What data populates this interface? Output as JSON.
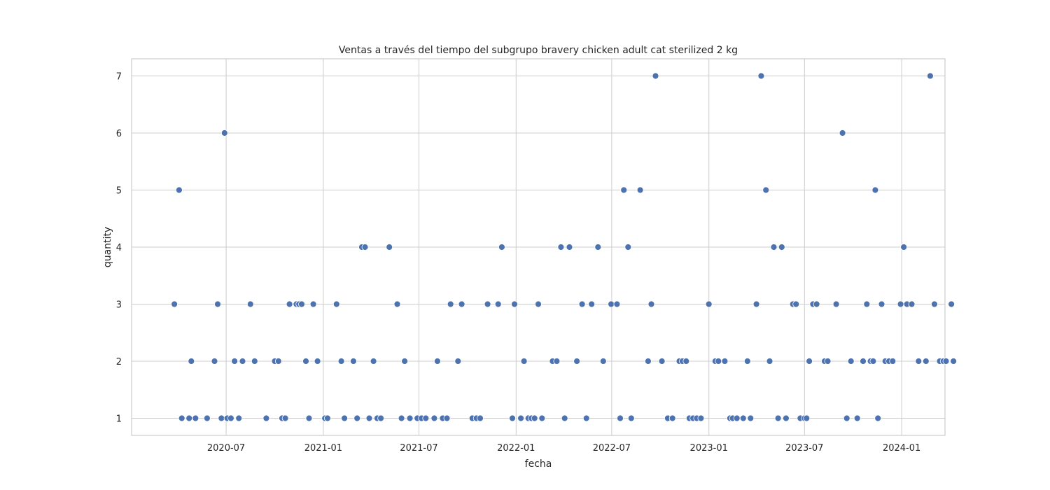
{
  "chart_data": {
    "type": "scatter",
    "title": "Ventas a través del tiempo del subgrupo bravery chicken adult cat sterilized 2 kg",
    "xlabel": "fecha",
    "ylabel": "quantity",
    "xlim": [
      "2020-01-04",
      "2024-03-23"
    ],
    "ylim": [
      0.7,
      7.3
    ],
    "x_ticks": [
      "2020-07",
      "2021-01",
      "2021-07",
      "2022-01",
      "2022-07",
      "2023-01",
      "2023-07",
      "2024-01"
    ],
    "y_ticks": [
      1,
      2,
      3,
      4,
      5,
      6,
      7
    ],
    "grid": true,
    "color": "#4c72b0",
    "points": [
      [
        "2020-03-25",
        3
      ],
      [
        "2020-04-03",
        5
      ],
      [
        "2020-04-08",
        1
      ],
      [
        "2020-04-22",
        1
      ],
      [
        "2020-04-26",
        2
      ],
      [
        "2020-05-04",
        1
      ],
      [
        "2020-05-26",
        1
      ],
      [
        "2020-06-09",
        2
      ],
      [
        "2020-06-15",
        3
      ],
      [
        "2020-06-22",
        1
      ],
      [
        "2020-06-28",
        6
      ],
      [
        "2020-07-03",
        1
      ],
      [
        "2020-07-10",
        1
      ],
      [
        "2020-07-17",
        2
      ],
      [
        "2020-07-25",
        1
      ],
      [
        "2020-08-01",
        2
      ],
      [
        "2020-08-16",
        3
      ],
      [
        "2020-08-24",
        2
      ],
      [
        "2020-09-15",
        1
      ],
      [
        "2020-10-01",
        2
      ],
      [
        "2020-10-08",
        2
      ],
      [
        "2020-10-15",
        1
      ],
      [
        "2020-10-21",
        1
      ],
      [
        "2020-10-29",
        3
      ],
      [
        "2020-11-11",
        3
      ],
      [
        "2020-11-16",
        3
      ],
      [
        "2020-11-21",
        3
      ],
      [
        "2020-11-29",
        2
      ],
      [
        "2020-12-05",
        1
      ],
      [
        "2020-12-13",
        3
      ],
      [
        "2020-12-21",
        2
      ],
      [
        "2021-01-04",
        1
      ],
      [
        "2021-01-09",
        1
      ],
      [
        "2021-01-26",
        3
      ],
      [
        "2021-02-04",
        2
      ],
      [
        "2021-02-10",
        1
      ],
      [
        "2021-02-27",
        2
      ],
      [
        "2021-03-06",
        1
      ],
      [
        "2021-03-15",
        4
      ],
      [
        "2021-03-21",
        4
      ],
      [
        "2021-03-29",
        1
      ],
      [
        "2021-04-06",
        2
      ],
      [
        "2021-04-13",
        1
      ],
      [
        "2021-04-20",
        1
      ],
      [
        "2021-05-06",
        4
      ],
      [
        "2021-05-21",
        3
      ],
      [
        "2021-05-29",
        1
      ],
      [
        "2021-06-04",
        2
      ],
      [
        "2021-06-14",
        1
      ],
      [
        "2021-06-28",
        1
      ],
      [
        "2021-07-06",
        1
      ],
      [
        "2021-07-14",
        1
      ],
      [
        "2021-07-30",
        1
      ],
      [
        "2021-08-05",
        2
      ],
      [
        "2021-08-15",
        1
      ],
      [
        "2021-08-23",
        1
      ],
      [
        "2021-08-30",
        3
      ],
      [
        "2021-09-13",
        2
      ],
      [
        "2021-09-20",
        3
      ],
      [
        "2021-10-10",
        1
      ],
      [
        "2021-10-18",
        1
      ],
      [
        "2021-10-25",
        1
      ],
      [
        "2021-11-08",
        3
      ],
      [
        "2021-11-28",
        3
      ],
      [
        "2021-12-05",
        4
      ],
      [
        "2021-12-25",
        1
      ],
      [
        "2021-12-29",
        3
      ],
      [
        "2022-01-10",
        1
      ],
      [
        "2022-01-16",
        2
      ],
      [
        "2022-01-24",
        1
      ],
      [
        "2022-01-30",
        1
      ],
      [
        "2022-02-05",
        1
      ],
      [
        "2022-02-12",
        3
      ],
      [
        "2022-02-19",
        1
      ],
      [
        "2022-03-11",
        2
      ],
      [
        "2022-03-19",
        2
      ],
      [
        "2022-03-27",
        4
      ],
      [
        "2022-04-03",
        1
      ],
      [
        "2022-04-12",
        4
      ],
      [
        "2022-04-26",
        2
      ],
      [
        "2022-05-06",
        3
      ],
      [
        "2022-05-14",
        1
      ],
      [
        "2022-05-24",
        3
      ],
      [
        "2022-06-05",
        4
      ],
      [
        "2022-06-15",
        2
      ],
      [
        "2022-06-30",
        3
      ],
      [
        "2022-07-11",
        3
      ],
      [
        "2022-07-17",
        1
      ],
      [
        "2022-07-24",
        5
      ],
      [
        "2022-08-01",
        4
      ],
      [
        "2022-08-07",
        1
      ],
      [
        "2022-08-24",
        5
      ],
      [
        "2022-09-08",
        2
      ],
      [
        "2022-09-14",
        3
      ],
      [
        "2022-09-22",
        7
      ],
      [
        "2022-10-04",
        2
      ],
      [
        "2022-10-15",
        1
      ],
      [
        "2022-10-24",
        1
      ],
      [
        "2022-11-06",
        2
      ],
      [
        "2022-11-12",
        2
      ],
      [
        "2022-11-19",
        2
      ],
      [
        "2022-11-25",
        1
      ],
      [
        "2022-12-02",
        1
      ],
      [
        "2022-12-09",
        1
      ],
      [
        "2022-12-17",
        1
      ],
      [
        "2023-01-01",
        3
      ],
      [
        "2023-01-13",
        2
      ],
      [
        "2023-01-19",
        2
      ],
      [
        "2023-01-31",
        2
      ],
      [
        "2023-02-10",
        1
      ],
      [
        "2023-02-15",
        1
      ],
      [
        "2023-02-23",
        1
      ],
      [
        "2023-03-07",
        1
      ],
      [
        "2023-03-15",
        2
      ],
      [
        "2023-03-21",
        1
      ],
      [
        "2023-04-01",
        3
      ],
      [
        "2023-04-10",
        7
      ],
      [
        "2023-04-19",
        5
      ],
      [
        "2023-04-26",
        2
      ],
      [
        "2023-05-04",
        4
      ],
      [
        "2023-05-12",
        1
      ],
      [
        "2023-05-19",
        4
      ],
      [
        "2023-05-27",
        1
      ],
      [
        "2023-06-09",
        3
      ],
      [
        "2023-06-15",
        3
      ],
      [
        "2023-06-23",
        1
      ],
      [
        "2023-07-01",
        1
      ],
      [
        "2023-07-05",
        1
      ],
      [
        "2023-07-10",
        2
      ],
      [
        "2023-07-17",
        3
      ],
      [
        "2023-07-24",
        3
      ],
      [
        "2023-08-08",
        2
      ],
      [
        "2023-08-14",
        2
      ],
      [
        "2023-08-30",
        3
      ],
      [
        "2023-09-11",
        6
      ],
      [
        "2023-09-19",
        1
      ],
      [
        "2023-09-27",
        2
      ],
      [
        "2023-10-09",
        1
      ],
      [
        "2023-10-20",
        2
      ],
      [
        "2023-10-27",
        3
      ],
      [
        "2023-11-03",
        2
      ],
      [
        "2023-11-08",
        2
      ],
      [
        "2023-11-12",
        5
      ],
      [
        "2023-11-17",
        1
      ],
      [
        "2023-11-24",
        3
      ],
      [
        "2023-12-01",
        2
      ],
      [
        "2023-12-08",
        2
      ],
      [
        "2023-12-15",
        2
      ],
      [
        "2023-12-30",
        3
      ],
      [
        "2024-01-05",
        4
      ],
      [
        "2024-01-11",
        3
      ],
      [
        "2024-01-20",
        3
      ],
      [
        "2024-02-02",
        2
      ],
      [
        "2024-02-16",
        2
      ],
      [
        "2024-02-24",
        7
      ],
      [
        "2024-03-03",
        3
      ],
      [
        "2024-03-13",
        2
      ],
      [
        "2024-03-20",
        2
      ],
      [
        "2024-03-25",
        2
      ],
      [
        "2024-04-04",
        3
      ],
      [
        "2024-04-08",
        2
      ]
    ]
  }
}
